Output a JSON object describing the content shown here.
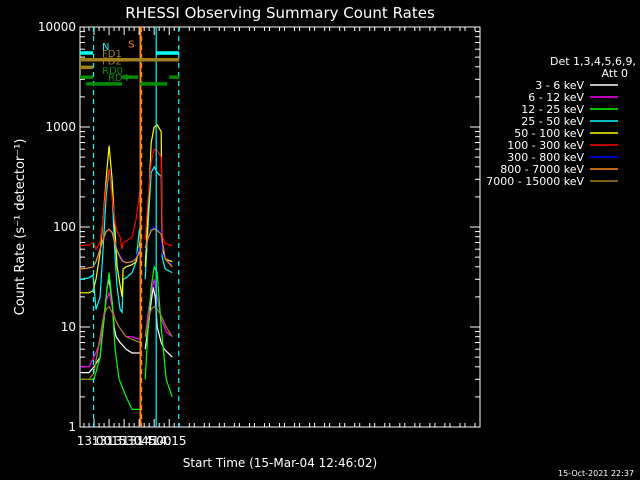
{
  "chart_data": {
    "type": "line",
    "title": "RHESSI Observing Summary Count Rates",
    "xlabel": "Start Time (15-Mar-04 12:46:02)",
    "ylabel": "Count Rate (s⁻¹ detector⁻¹)",
    "y_scale": "log",
    "ylim": [
      1,
      10000
    ],
    "xlim_minutes_of_day": [
      766.0,
      1165.0
    ],
    "x_ticks": [
      {
        "t": 780,
        "label": "13:00"
      },
      {
        "t": 795,
        "label": "13:15"
      },
      {
        "t": 810,
        "label": "13:30"
      },
      {
        "t": 825,
        "label": "13:45"
      },
      {
        "t": 840,
        "label": "14:00"
      },
      {
        "t": 855,
        "label": "14:15"
      }
    ],
    "y_ticks": [
      {
        "v": 1,
        "label": "1"
      },
      {
        "v": 10,
        "label": "10"
      },
      {
        "v": 100,
        "label": "100"
      },
      {
        "v": 1000,
        "label": "1000"
      },
      {
        "v": 10000,
        "label": "10000"
      }
    ],
    "legend_header": [
      "Det 1,3,4,5,6,9,",
      "Att 0"
    ],
    "legend_placement": "right",
    "series": [
      {
        "name": "3 - 6 keV",
        "color": "#ffffff",
        "x": [
          766,
          775,
          780,
          786,
          788,
          791,
          793,
          795,
          798,
          800,
          802,
          806,
          812,
          818,
          826,
          827,
          831,
          834,
          837,
          839,
          841,
          843,
          847,
          850,
          858
        ],
        "y": [
          3.5,
          3.5,
          4,
          5,
          8,
          15,
          25,
          30,
          18,
          10,
          8,
          7,
          6,
          5.5,
          5.5,
          null,
          6,
          10,
          18,
          25,
          20,
          10,
          7,
          6,
          5
        ]
      },
      {
        "name": "6 - 12 keV",
        "color": "#ff00ff",
        "x": [
          766,
          775,
          780,
          786,
          789,
          792,
          795,
          798,
          801,
          805,
          812,
          818,
          826,
          827,
          831,
          834,
          837,
          840,
          843,
          847,
          852,
          858
        ],
        "y": [
          4,
          4,
          5,
          7,
          12,
          18,
          22,
          16,
          12,
          10,
          8,
          8,
          7.5,
          null,
          8,
          14,
          22,
          30,
          20,
          12,
          9,
          8
        ]
      },
      {
        "name": "12 - 25 keV",
        "color": "#00ff00",
        "x": [
          766,
          775,
          780,
          786,
          789,
          792,
          795,
          798,
          801,
          805,
          812,
          818,
          826,
          827,
          831,
          834,
          837,
          840,
          843,
          847,
          852,
          858
        ],
        "y": [
          3,
          3,
          3,
          5,
          10,
          20,
          35,
          18,
          6,
          3,
          2,
          1.5,
          1.5,
          null,
          3,
          10,
          25,
          40,
          35,
          10,
          3,
          2
        ]
      },
      {
        "name": "25 - 50 keV",
        "color": "#00ffff",
        "x": [
          766,
          775,
          779,
          782,
          786,
          789,
          792,
          795,
          798,
          801,
          803,
          806,
          808,
          809,
          812,
          818,
          822,
          825,
          826,
          827,
          831,
          834,
          837,
          840,
          843,
          847,
          848,
          851,
          858
        ],
        "y": [
          30,
          31,
          33,
          15,
          20,
          60,
          200,
          380,
          220,
          50,
          25,
          15,
          14,
          30,
          31,
          35,
          45,
          90,
          100,
          null,
          30,
          110,
          350,
          400,
          350,
          320,
          50,
          38,
          35
        ]
      },
      {
        "name": "50 - 100 keV",
        "color": "#ffff00",
        "x": [
          766,
          775,
          779,
          782,
          786,
          789,
          792,
          795,
          798,
          801,
          803,
          806,
          808,
          809,
          812,
          818,
          822,
          825,
          826,
          827,
          831,
          834,
          837,
          840,
          843,
          847,
          848,
          851,
          858
        ],
        "y": [
          22,
          22,
          23,
          30,
          55,
          120,
          300,
          650,
          300,
          90,
          40,
          26,
          20,
          38,
          40,
          42,
          45,
          60,
          75,
          null,
          40,
          150,
          700,
          1000,
          1050,
          900,
          60,
          48,
          45
        ]
      },
      {
        "name": "100 - 300 keV",
        "color": "#ff0000",
        "x": [
          766,
          775,
          779,
          782,
          786,
          789,
          792,
          795,
          798,
          801,
          803,
          806,
          808,
          809,
          812,
          818,
          822,
          825,
          826,
          827,
          831,
          834,
          837,
          840,
          843,
          847,
          848,
          851,
          858
        ],
        "y": [
          65,
          66,
          70,
          60,
          70,
          120,
          250,
          380,
          200,
          110,
          90,
          80,
          60,
          70,
          72,
          80,
          120,
          200,
          230,
          null,
          75,
          200,
          450,
          600,
          580,
          500,
          80,
          68,
          65
        ]
      },
      {
        "name": "300 - 800 keV",
        "color": "#0000ff",
        "x": [
          766,
          775,
          779,
          782,
          786,
          789,
          792,
          795,
          798,
          801,
          803,
          806,
          808,
          809,
          812,
          818,
          822,
          825,
          826,
          827,
          831,
          834,
          837,
          840,
          843,
          847,
          848,
          851,
          858
        ],
        "y": [
          38,
          39,
          40,
          45,
          60,
          75,
          90,
          95,
          90,
          70,
          60,
          52,
          48,
          45,
          44,
          45,
          50,
          60,
          65,
          null,
          60,
          80,
          95,
          100,
          95,
          90,
          55,
          48,
          42
        ]
      },
      {
        "name": "800 - 7000 keV",
        "color": "#ff8c1a",
        "x": [
          766,
          775,
          779,
          782,
          786,
          789,
          792,
          795,
          798,
          801,
          803,
          806,
          808,
          812,
          818,
          822,
          825,
          826,
          827,
          831,
          834,
          837,
          840,
          843,
          847,
          851,
          858
        ],
        "y": [
          38,
          39,
          40,
          45,
          60,
          75,
          90,
          95,
          88,
          68,
          58,
          50,
          46,
          44,
          45,
          48,
          55,
          58,
          null,
          62,
          78,
          92,
          96,
          92,
          85,
          48,
          40
        ]
      },
      {
        "name": "7000 - 15000 keV",
        "color": "#a0801a",
        "x": [
          766,
          775,
          780,
          786,
          789,
          792,
          795,
          798,
          801,
          805,
          812,
          818,
          826,
          827,
          831,
          834,
          837,
          840,
          843,
          847,
          852,
          858
        ],
        "y": [
          3,
          3,
          3.5,
          8,
          12,
          15,
          16,
          14,
          12,
          10,
          8,
          7.5,
          7,
          null,
          8,
          12,
          15,
          16,
          15,
          13,
          10,
          8
        ]
      }
    ],
    "state_bars": [
      {
        "name": "N",
        "color": "#00ffff",
        "level": 5500,
        "segments": [
          [
            766,
            779
          ],
          [
            842,
            865
          ]
        ]
      },
      {
        "name": "FD1",
        "color": "#a0801a",
        "level": 4700,
        "segments": [
          [
            766,
            865
          ]
        ]
      },
      {
        "name": "FD2",
        "color": "#a0801a",
        "level": 3950,
        "segments": [
          [
            766,
            779
          ]
        ]
      },
      {
        "name": "RD0",
        "color": "#008c00",
        "level": 3150,
        "segments": [
          [
            766,
            779
          ],
          [
            808,
            824
          ],
          [
            855,
            865
          ]
        ]
      },
      {
        "name": "RD4",
        "color": "#008c00",
        "level": 2700,
        "segments": [
          [
            772,
            808
          ],
          [
            826,
            853
          ]
        ]
      },
      {
        "name": "S",
        "color": "#ff8c1a",
        "level": 5800,
        "segments": [
          [
            826,
            827
          ]
        ]
      }
    ],
    "vertical_markers": [
      {
        "t": 779.5,
        "color": "#00ffff",
        "style": "dashed"
      },
      {
        "t": 826,
        "color": "#ff8c1a",
        "style": "solid"
      },
      {
        "t": 826.6,
        "color": "#ff8c1a",
        "style": "solid"
      },
      {
        "t": 827.4,
        "color": "#ff8c1a",
        "style": "dashed"
      },
      {
        "t": 842,
        "color": "#00ffff",
        "style": "solid"
      },
      {
        "t": 864.5,
        "color": "#00ffff",
        "style": "dashed"
      }
    ]
  },
  "footer": {
    "timestamp": "15-Oct-2021 22:37"
  }
}
